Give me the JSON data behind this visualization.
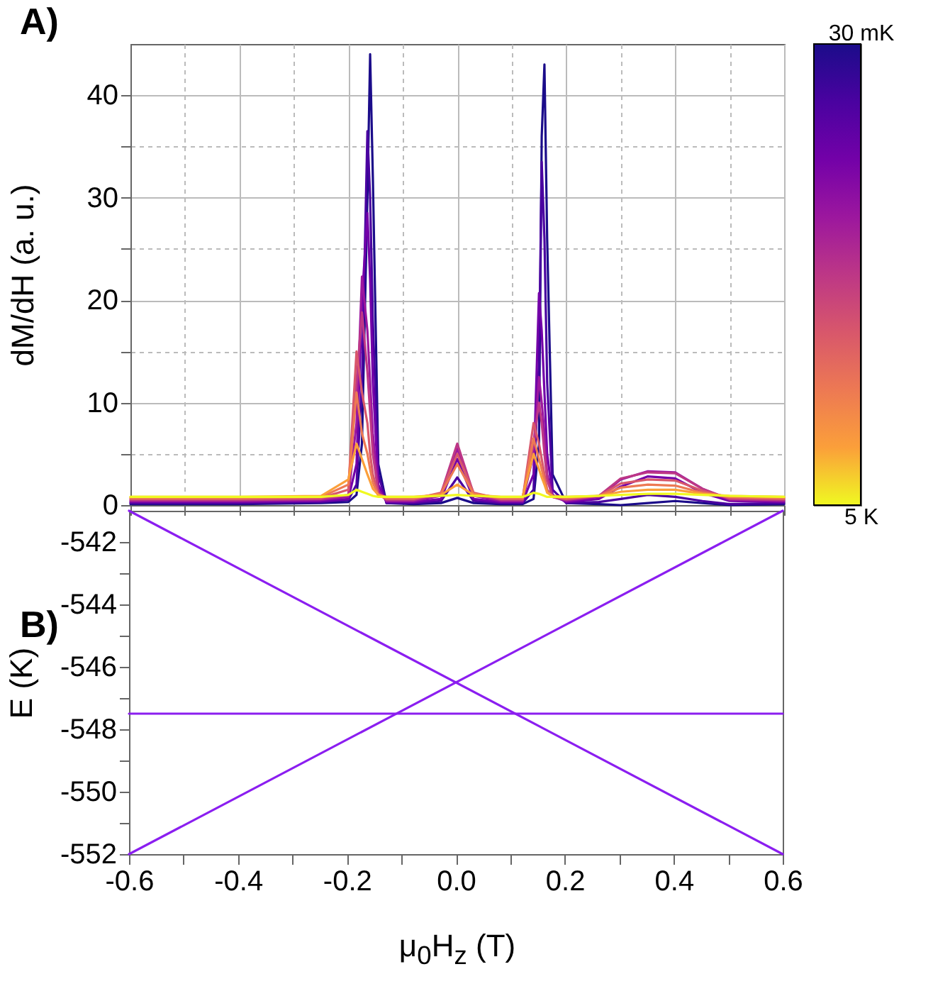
{
  "chart_data": [
    {
      "type": "line",
      "annotations": [
        "A)"
      ],
      "ylabel": "dM/dH (a. u.)",
      "x": [
        -0.6,
        -0.4,
        -0.25,
        -0.2,
        -0.185,
        -0.175,
        -0.165,
        -0.16,
        -0.155,
        -0.145,
        -0.13,
        -0.08,
        -0.03,
        0,
        0.03,
        0.08,
        0.12,
        0.14,
        0.15,
        0.155,
        0.16,
        0.165,
        0.175,
        0.2,
        0.26,
        0.3,
        0.35,
        0.4,
        0.45,
        0.5,
        0.6
      ],
      "series": [
        {
          "color": "#1b0c8a",
          "values": [
            0.1,
            0.1,
            0.2,
            0.3,
            1,
            6,
            30,
            44,
            32,
            4,
            0.2,
            0.1,
            0.2,
            0.7,
            0.2,
            0.1,
            0.1,
            0.6,
            6,
            36,
            43,
            26,
            3,
            0.2,
            0.1,
            0,
            0.2,
            0.4,
            0.2,
            0,
            0.1
          ]
        },
        {
          "color": "#4a02a0",
          "values": [
            0.2,
            0.2,
            0.3,
            0.5,
            2,
            12,
            36.5,
            30,
            18,
            3,
            0.2,
            0.2,
            0.4,
            2.7,
            0.4,
            0.2,
            0.2,
            1.5,
            14,
            33.5,
            26,
            12,
            1.5,
            0.2,
            0.3,
            0.6,
            1,
            0.8,
            0.4,
            0.1,
            0.2
          ]
        },
        {
          "color": "#7301a8",
          "values": [
            0.3,
            0.3,
            0.4,
            0.6,
            4,
            20,
            28.5,
            22,
            12,
            2,
            0.3,
            0.3,
            0.6,
            4.5,
            0.6,
            0.3,
            0.3,
            3,
            20.7,
            17,
            11,
            5,
            1,
            0.3,
            0.6,
            1.8,
            2.8,
            2.6,
            1.2,
            0.4,
            0.3
          ]
        },
        {
          "color": "#9c179e",
          "values": [
            0.4,
            0.4,
            0.5,
            0.8,
            8,
            22.3,
            17,
            12,
            7,
            1.5,
            0.4,
            0.4,
            0.9,
            5.5,
            0.9,
            0.4,
            0.4,
            5,
            12.5,
            10,
            7,
            3,
            0.8,
            0.4,
            0.8,
            2.5,
            3.3,
            3.2,
            1.6,
            0.5,
            0.4
          ]
        },
        {
          "color": "#bd3786",
          "values": [
            0.5,
            0.5,
            0.6,
            1,
            12,
            18.8,
            13,
            9,
            5,
            1.2,
            0.5,
            0.5,
            1.1,
            6,
            1.1,
            0.5,
            0.5,
            6,
            10,
            8,
            5,
            2.5,
            0.8,
            0.5,
            0.9,
            2.6,
            3.2,
            3.1,
            1.6,
            0.6,
            0.5
          ]
        },
        {
          "color": "#d8576b",
          "values": [
            0.6,
            0.6,
            0.7,
            1.5,
            15,
            11,
            8,
            5,
            3,
            1,
            0.6,
            0.6,
            1.2,
            5,
            1.2,
            0.6,
            0.6,
            8,
            6,
            4.5,
            3,
            1.5,
            0.8,
            0.6,
            0.9,
            2.1,
            2.5,
            2.4,
            1.4,
            0.7,
            0.6
          ]
        },
        {
          "color": "#ed7953",
          "values": [
            0.7,
            0.7,
            0.8,
            2,
            11,
            7,
            5,
            3.5,
            2.2,
            0.9,
            0.7,
            0.7,
            1.1,
            4,
            1.1,
            0.7,
            0.7,
            6.5,
            4.5,
            3.5,
            2.4,
            1.3,
            0.8,
            0.7,
            0.9,
            1.7,
            2,
            1.9,
            1.2,
            0.8,
            0.7
          ]
        },
        {
          "color": "#fb9f3a",
          "values": [
            0.8,
            0.8,
            0.9,
            2.5,
            6,
            4.5,
            3,
            2.3,
            1.6,
            1,
            0.8,
            0.8,
            1,
            2,
            1,
            0.8,
            0.8,
            5,
            3.5,
            2.7,
            2,
            1.2,
            0.9,
            0.8,
            0.9,
            1.3,
            1.5,
            1.5,
            1.1,
            0.9,
            0.8
          ]
        },
        {
          "color": "#f0f921",
          "values": [
            0.8,
            0.8,
            0.8,
            1,
            1.5,
            1.3,
            1.1,
            1,
            0.9,
            0.8,
            0.8,
            0.8,
            0.9,
            1,
            0.9,
            0.8,
            0.8,
            1.2,
            1.1,
            1,
            0.9,
            0.8,
            0.8,
            0.8,
            0.9,
            1,
            1.1,
            1.1,
            1,
            0.9,
            0.8
          ]
        }
      ],
      "xlim": [
        -0.6,
        0.6
      ],
      "ylim": [
        0,
        45
      ],
      "xticks": [
        -0.6,
        {
          "value": -0.5,
          "label": null
        },
        -0.4,
        {
          "value": -0.3,
          "label": null
        },
        -0.2,
        {
          "value": -0.1,
          "label": null
        },
        0,
        {
          "value": 0.1,
          "label": null
        },
        0.2,
        {
          "value": 0.3,
          "label": null
        },
        0.4,
        {
          "value": 0.5,
          "label": null
        },
        0.6
      ],
      "yticks": [
        0,
        {
          "value": 5,
          "label": null
        },
        10,
        {
          "value": 15,
          "label": null
        },
        20,
        {
          "value": 25,
          "label": null
        },
        30,
        {
          "value": 35,
          "label": null
        },
        40
      ],
      "clim": [
        5000,
        30
      ],
      "cticks": [
        {
          "value": 30,
          "label": "30 mK"
        },
        {
          "value": 5000,
          "label": "5 K"
        }
      ],
      "grid": true,
      "tick_labels": "y"
    },
    {
      "type": "line",
      "annotations": [
        "B)"
      ],
      "xlabel": "μ$_{0}$H$_{z}$ (T)",
      "ylabel": "E (K)",
      "series": [
        {
          "color": "#8b1ef0",
          "values": [
            -541,
            -552
          ]
        },
        {
          "color": "#8b1ef0",
          "values": [
            -552,
            -541
          ]
        },
        {
          "color": "#8b1ef0",
          "values": [
            -547.5,
            -547.5
          ]
        }
      ],
      "x": [
        -0.6,
        0.6
      ],
      "xlim": [
        -0.6,
        0.6
      ],
      "ylim": [
        -552,
        -541
      ],
      "xticks": [
        -0.6,
        {
          "value": -0.5,
          "label": null
        },
        -0.4,
        {
          "value": -0.3,
          "label": null
        },
        -0.2,
        {
          "value": -0.1,
          "label": null
        },
        {
          "value": 0,
          "label": "0.0"
        },
        {
          "value": 0.1,
          "label": null
        },
        0.2,
        {
          "value": 0.3,
          "label": null
        },
        0.4,
        {
          "value": 0.5,
          "label": null
        },
        0.6
      ],
      "yticks": [
        -552,
        {
          "value": -551,
          "label": null
        },
        -550,
        {
          "value": -549,
          "label": null
        },
        -548,
        {
          "value": -547,
          "label": null
        },
        -546,
        {
          "value": -545,
          "label": null
        },
        -544,
        {
          "value": -543,
          "label": null
        },
        -542
      ]
    }
  ]
}
